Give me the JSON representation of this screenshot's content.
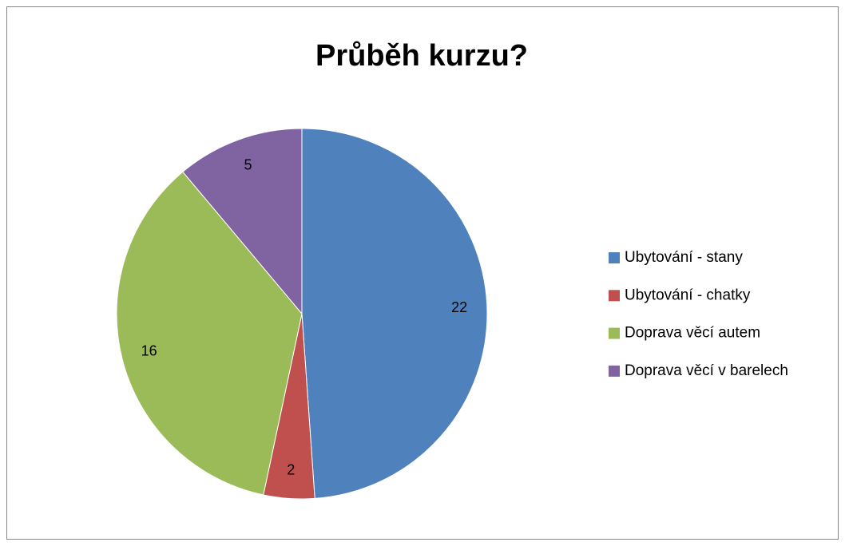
{
  "chart_data": {
    "type": "pie",
    "title": "Průběh kurzu?",
    "categories": [
      "Ubytování - stany",
      "Ubytování - chatky",
      "Doprava věcí autem",
      "Doprava věcí v barelech"
    ],
    "values": [
      22,
      2,
      16,
      5
    ],
    "colors": [
      "#4f81bd",
      "#c0504d",
      "#9bbb59",
      "#8064a2"
    ],
    "legend": "right"
  }
}
